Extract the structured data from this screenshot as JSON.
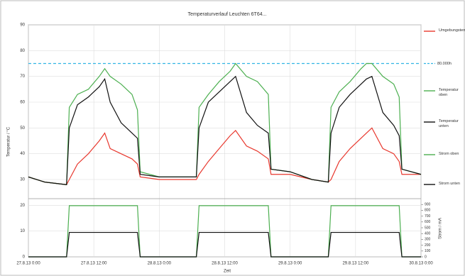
{
  "chart_data": {
    "type": "line",
    "title": "Temperaturverlauf Leuchten 6T64...",
    "xlabel": "Zeit",
    "ylabel": "Temperatur / °C",
    "y2label": "Strom / mA",
    "x": [
      0,
      3,
      7,
      7.5,
      9,
      11,
      13,
      14,
      15,
      17,
      19,
      20,
      20.5,
      24,
      28,
      30.8,
      31.3,
      33,
      35,
      37,
      38,
      40,
      42,
      44,
      44.5,
      48,
      52,
      55,
      55.5,
      57,
      59,
      61,
      62,
      63,
      65,
      67,
      68,
      68.5,
      72
    ],
    "xlim": [
      0,
      72
    ],
    "xticks": [
      {
        "value": 0,
        "label": "27.8.13 0:00"
      },
      {
        "value": 12,
        "label": "27.8.13 12:00"
      },
      {
        "value": 24,
        "label": "28.8.13 0:00"
      },
      {
        "value": 36,
        "label": "28.8.13 12:00"
      },
      {
        "value": 48,
        "label": "29.8.13 0:00"
      },
      {
        "value": 60,
        "label": "29.8.13 12:00"
      },
      {
        "value": 72,
        "label": "30.8.13 0:00"
      }
    ],
    "ylim": [
      0,
      90
    ],
    "yticks": [
      0,
      10,
      20,
      30,
      40,
      50,
      60,
      70,
      80,
      90
    ],
    "y2lim": [
      0,
      1000
    ],
    "y2ticks": [
      0,
      100,
      200,
      300,
      400,
      500,
      600,
      700,
      800,
      900
    ],
    "grid": true,
    "reference_line": {
      "value": 75,
      "label": "80.000h",
      "color": "#33b5e5"
    },
    "series": [
      {
        "name": "Umgebungstemperatur",
        "color": "#e8382e",
        "values": [
          31,
          29,
          28,
          30,
          36,
          40,
          45,
          48,
          42,
          40,
          38,
          36,
          31,
          30,
          30,
          30,
          32,
          37,
          42,
          47,
          49,
          43,
          41,
          38,
          32,
          32,
          30,
          29,
          30,
          37,
          42,
          46,
          48,
          50,
          42,
          40,
          37,
          32,
          32
        ]
      },
      {
        "name": "Temperatur oben",
        "color": "#4caf50",
        "values": [
          31,
          29,
          28,
          58,
          63,
          65,
          70,
          73,
          70,
          67,
          63,
          57,
          33,
          31,
          31,
          31,
          58,
          63,
          68,
          72,
          75,
          70,
          68,
          63,
          34,
          33,
          30,
          29,
          58,
          64,
          68,
          73,
          75,
          75,
          70,
          67,
          62,
          34,
          32
        ]
      },
      {
        "name": "Temperatur unten",
        "color": "#111111",
        "values": [
          31,
          29,
          28,
          50,
          59,
          62,
          66,
          69,
          60,
          52,
          48,
          46,
          32,
          31,
          31,
          31,
          50,
          60,
          64,
          68,
          70,
          56,
          51,
          48,
          34,
          33,
          30,
          29,
          48,
          58,
          63,
          67,
          69,
          70,
          56,
          51,
          47,
          34,
          32
        ]
      },
      {
        "name": "Strom oben",
        "color": "#4caf50",
        "axis": "y2",
        "values": [
          0,
          0,
          0,
          880,
          880,
          880,
          880,
          880,
          880,
          880,
          880,
          880,
          0,
          0,
          0,
          0,
          880,
          880,
          880,
          880,
          880,
          880,
          880,
          880,
          0,
          0,
          0,
          0,
          880,
          880,
          880,
          880,
          880,
          880,
          880,
          880,
          880,
          0,
          0
        ]
      },
      {
        "name": "Strom unten",
        "color": "#111111",
        "axis": "y2",
        "values": [
          0,
          0,
          0,
          420,
          420,
          420,
          420,
          420,
          420,
          420,
          420,
          420,
          0,
          0,
          0,
          0,
          420,
          420,
          420,
          420,
          420,
          420,
          420,
          420,
          0,
          0,
          0,
          0,
          420,
          420,
          420,
          420,
          420,
          420,
          420,
          420,
          420,
          0,
          0
        ]
      }
    ]
  }
}
